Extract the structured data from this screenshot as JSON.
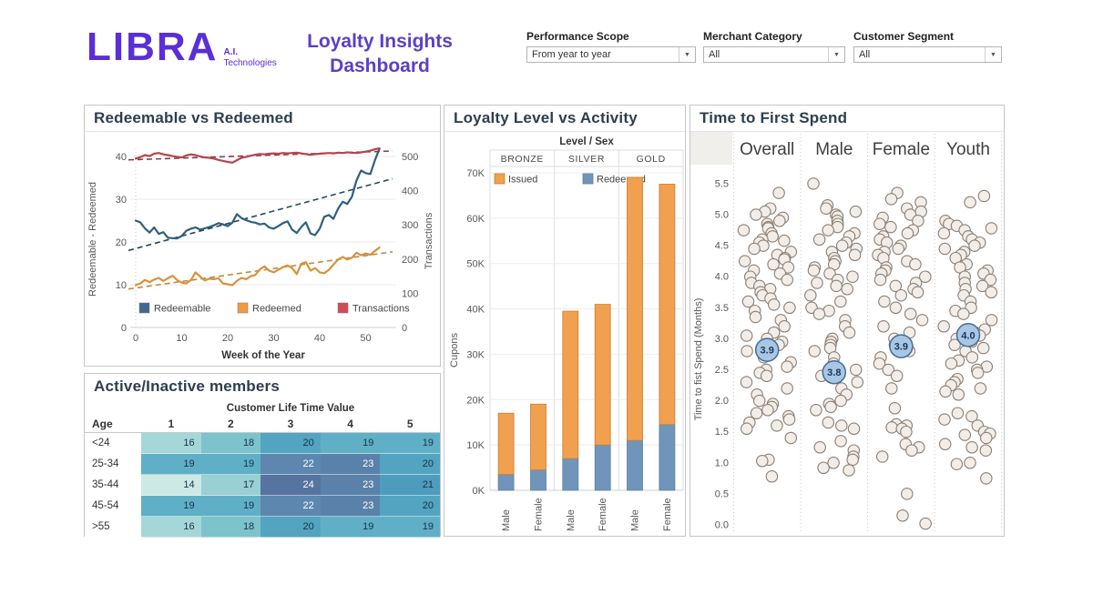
{
  "colors": {
    "accent_purple": "#5b3fc8",
    "logo_purple": "#5a2ed8",
    "panel_border": "#c6c6c6",
    "title_text": "#2e3e4e",
    "axis_text": "#575757",
    "redeemable_line": "#2e5f7f",
    "redeemable_legend": "#41688f",
    "redeemable_trend": "#24455e",
    "redeemed_line": "#d9913c",
    "redeemed_legend": "#f09b40",
    "redeemed_trend": "#c08a40",
    "transactions_line": "#b2474f",
    "transactions_legend": "#d14a55",
    "transactions_trend": "#8e3a46",
    "bar_issued": "#f0a04e",
    "bar_issued_stroke": "#c97f2f",
    "bar_redeemed": "#7195ba",
    "bar_redeemed_stroke": "#5c80a6",
    "point_fill": "#f2ede8",
    "point_stroke": "#8a7f75",
    "mean_fill": "#a9c7e4",
    "mean_stroke": "#3f6d99",
    "mean_text": "#16395c",
    "heat_text_dark": "#17324a",
    "heat_text_light": "#ffffff"
  },
  "header": {
    "logo_text": "LIBRA",
    "logo_sub1": "A.I.",
    "logo_sub2": "Technologies",
    "title_line1": "Loyalty Insights",
    "title_line2": "Dashboard",
    "filters": [
      {
        "label": "Performance Scope",
        "value": "From year to year"
      },
      {
        "label": "Merchant Category",
        "value": "All"
      },
      {
        "label": "Customer Segment",
        "value": "All"
      }
    ]
  },
  "chart_data": [
    {
      "id": "redeemable_vs_redeemed",
      "type": "line",
      "title": "Redeemable vs Redeemed",
      "xlabel": "Week of the Year",
      "ylabel_left": "Redeemable - Redeemed",
      "ylabel_right": "Transactions",
      "x_ticks": [
        0,
        10,
        20,
        30,
        40,
        50
      ],
      "ylim_left": [
        0,
        44
      ],
      "yticks_left": [
        0,
        10,
        20,
        30,
        40
      ],
      "ylim_right": [
        0,
        550
      ],
      "yticks_right": [
        0,
        100,
        200,
        300,
        400,
        500
      ],
      "legend": [
        "Redeemable",
        "Redeemed",
        "Transactions"
      ],
      "series": [
        {
          "name": "Redeemable",
          "axis": "left",
          "values": [
            25.0,
            24.6,
            23.2,
            22.2,
            23.4,
            21.9,
            22.3,
            21.0,
            20.9,
            20.8,
            21.4,
            22.6,
            23.1,
            23.4,
            22.9,
            23.2,
            23.5,
            23.9,
            24.4,
            24.1,
            23.7,
            24.5,
            26.5,
            25.6,
            25.1,
            24.7,
            24.5,
            24.1,
            24.3,
            23.4,
            23.1,
            23.7,
            24.4,
            24.8,
            22.9,
            22.1,
            23.5,
            24.6,
            22.0,
            21.6,
            23.1,
            25.9,
            26.3,
            25.4,
            27.8,
            29.4,
            28.9,
            30.6,
            34.4,
            36.7,
            36.1,
            35.9,
            39.1,
            41.8
          ]
        },
        {
          "name": "Redeemed",
          "axis": "left",
          "values": [
            9.9,
            10.3,
            11.1,
            10.6,
            11.2,
            11.6,
            10.9,
            11.5,
            12.1,
            11.1,
            10.5,
            10.3,
            11.1,
            12.9,
            11.9,
            11.0,
            11.4,
            11.3,
            11.5,
            10.3,
            10.1,
            9.9,
            10.9,
            11.6,
            11.3,
            12.0,
            12.3,
            13.6,
            14.3,
            13.3,
            12.9,
            13.5,
            14.1,
            14.5,
            13.9,
            12.5,
            14.9,
            15.3,
            13.3,
            13.9,
            12.9,
            12.7,
            13.5,
            14.7,
            15.9,
            16.5,
            15.9,
            16.3,
            17.5,
            16.9,
            17.3,
            17.0,
            17.9,
            18.7
          ]
        },
        {
          "name": "Transactions",
          "axis": "right",
          "values": [
            494,
            498,
            504,
            501,
            508,
            510,
            506,
            504,
            501,
            499,
            497,
            503,
            506,
            504,
            500,
            497,
            496,
            494,
            490,
            487,
            484,
            482,
            489,
            496,
            499,
            502,
            505,
            507,
            506,
            508,
            509,
            508,
            510,
            509,
            510,
            511,
            509,
            507,
            505,
            507,
            508,
            509,
            510,
            509,
            511,
            510,
            512,
            511,
            510,
            512,
            514,
            517,
            521,
            524
          ]
        }
      ],
      "trends": [
        {
          "name": "Redeemable trend",
          "axis": "left",
          "start": 18.0,
          "end": 34.8
        },
        {
          "name": "Redeemed trend",
          "axis": "left",
          "start": 9.0,
          "end": 17.7
        },
        {
          "name": "Transactions trend",
          "axis": "right",
          "start": 490,
          "end": 516
        }
      ]
    },
    {
      "id": "active_inactive_members",
      "type": "heatmap",
      "title": "Active/Inactive members",
      "col_group_label": "Customer Life Time Value",
      "row_label": "Age",
      "columns": [
        "1",
        "2",
        "3",
        "4",
        "5"
      ],
      "rows": [
        "<24",
        "25-34",
        "35-44",
        "45-54",
        ">55"
      ],
      "values": [
        [
          16,
          18,
          20,
          19,
          19
        ],
        [
          19,
          19,
          22,
          23,
          20
        ],
        [
          14,
          17,
          24,
          23,
          21
        ],
        [
          19,
          19,
          22,
          23,
          20
        ],
        [
          16,
          18,
          20,
          19,
          19
        ]
      ],
      "cell_colors": {
        "14": "#cde9e4",
        "16": "#a6d7d8",
        "17": "#98d0d3",
        "18": "#7cc3cc",
        "19": "#5fb0c6",
        "20": "#53a4c0",
        "21": "#4d9bbd",
        "22": "#5d87ae",
        "23": "#5a81a9",
        "24": "#57739f"
      },
      "light_text_threshold": 22
    },
    {
      "id": "loyalty_level_vs_activity",
      "type": "bar",
      "title": "Loyalty Level vs Activity",
      "col_group_label": "Level /  Sex",
      "ylabel": "Cupons",
      "yticks": [
        "0K",
        "10K",
        "20K",
        "30K",
        "40K",
        "50K",
        "60K",
        "70K"
      ],
      "ymax_k": 71,
      "levels": [
        "BRONZE",
        "SILVER",
        "GOLD"
      ],
      "legend": [
        "Issued",
        "Redeemed"
      ],
      "bars": [
        {
          "level": "BRONZE",
          "sex": "Male",
          "issued_k": 13.5,
          "redeemed_k": 3.5
        },
        {
          "level": "BRONZE",
          "sex": "Female",
          "issued_k": 14.5,
          "redeemed_k": 4.5
        },
        {
          "level": "SILVER",
          "sex": "Male",
          "issued_k": 32.5,
          "redeemed_k": 7
        },
        {
          "level": "SILVER",
          "sex": "Female",
          "issued_k": 31,
          "redeemed_k": 10
        },
        {
          "level": "GOLD",
          "sex": "Male",
          "issued_k": 58,
          "redeemed_k": 11
        },
        {
          "level": "GOLD",
          "sex": "Female",
          "issued_k": 53,
          "redeemed_k": 14.5
        }
      ]
    },
    {
      "id": "time_to_first_spend",
      "type": "scatter",
      "title": "Time to First Spend",
      "ylabel": "Time to fist Spend (Months)",
      "yticks": [
        "0.0",
        "0.5",
        "1.0",
        "1.5",
        "2.0",
        "2.5",
        "3.0",
        "3.5",
        "4.0",
        "4.5",
        "5.0",
        "5.5"
      ],
      "groups": [
        {
          "name": "Overall",
          "mean_label": "3.9",
          "marker_value": 2.82,
          "points": [
            5.35,
            5.1,
            5.05,
            5.0,
            4.95,
            4.9,
            4.85,
            4.8,
            4.78,
            4.75,
            4.7,
            4.65,
            4.6,
            4.58,
            4.55,
            4.5,
            4.45,
            4.4,
            4.35,
            4.3,
            4.28,
            4.25,
            4.2,
            4.15,
            4.1,
            4.05,
            4.0,
            3.95,
            3.9,
            3.85,
            3.8,
            3.75,
            3.7,
            3.65,
            3.6,
            3.55,
            3.5,
            3.45,
            3.35,
            3.3,
            3.2,
            3.1,
            3.05,
            3.0,
            2.95,
            2.9,
            2.8,
            2.7,
            2.62,
            2.55,
            2.5,
            2.45,
            2.4,
            2.3,
            2.2,
            2.1,
            2.0,
            1.95,
            1.9,
            1.85,
            1.8,
            1.75,
            1.7,
            1.65,
            1.6,
            1.55,
            1.4,
            1.05,
            1.03,
            0.78
          ]
        },
        {
          "name": "Male",
          "mean_label": "3.8",
          "marker_value": 2.46,
          "points": [
            5.5,
            5.15,
            5.1,
            5.05,
            5.0,
            4.97,
            4.9,
            4.85,
            4.8,
            4.75,
            4.7,
            4.65,
            4.6,
            4.55,
            4.5,
            4.45,
            4.4,
            4.35,
            4.3,
            4.25,
            4.2,
            4.15,
            4.1,
            4.05,
            4.0,
            3.95,
            3.9,
            3.85,
            3.8,
            3.7,
            3.6,
            3.5,
            3.45,
            3.4,
            3.3,
            3.2,
            3.1,
            3.0,
            2.95,
            2.9,
            2.85,
            2.8,
            2.7,
            2.6,
            2.5,
            2.4,
            2.3,
            2.2,
            2.1,
            2.0,
            1.95,
            1.9,
            1.85,
            1.65,
            1.6,
            1.55,
            1.35,
            1.25,
            1.2,
            1.1,
            1.05,
            1.0,
            0.92,
            0.88
          ]
        },
        {
          "name": "Female",
          "mean_label": "3.9",
          "marker_value": 2.88,
          "points": [
            5.35,
            5.25,
            5.2,
            5.1,
            5.05,
            5.0,
            4.95,
            4.9,
            4.85,
            4.8,
            4.75,
            4.7,
            4.65,
            4.6,
            4.55,
            4.5,
            4.45,
            4.4,
            4.35,
            4.3,
            4.25,
            4.2,
            4.15,
            4.1,
            4.05,
            4.0,
            3.95,
            3.9,
            3.85,
            3.8,
            3.75,
            3.7,
            3.6,
            3.5,
            3.4,
            3.3,
            3.2,
            3.1,
            3.0,
            2.9,
            2.8,
            2.7,
            2.6,
            2.5,
            2.4,
            2.2,
            1.88,
            1.62,
            1.6,
            1.57,
            1.55,
            1.5,
            1.3,
            1.25,
            1.2,
            1.1,
            0.5,
            0.15,
            0.02
          ]
        },
        {
          "name": "Youth",
          "mean_label": "4.0",
          "marker_value": 3.06,
          "points": [
            5.3,
            5.2,
            4.9,
            4.85,
            4.82,
            4.78,
            4.75,
            4.7,
            4.65,
            4.6,
            4.55,
            4.5,
            4.45,
            4.4,
            4.35,
            4.3,
            4.2,
            4.15,
            4.1,
            4.05,
            4.0,
            3.95,
            3.9,
            3.85,
            3.8,
            3.75,
            3.7,
            3.6,
            3.5,
            3.45,
            3.4,
            3.3,
            3.2,
            3.15,
            3.1,
            3.05,
            3.0,
            2.95,
            2.9,
            2.85,
            2.8,
            2.7,
            2.65,
            2.6,
            2.55,
            2.5,
            2.45,
            2.35,
            2.3,
            2.25,
            2.2,
            2.15,
            2.1,
            1.8,
            1.75,
            1.7,
            1.6,
            1.5,
            1.47,
            1.45,
            1.4,
            1.3,
            1.25,
            1.2,
            1.0,
            0.98,
            0.75
          ]
        }
      ]
    }
  ]
}
